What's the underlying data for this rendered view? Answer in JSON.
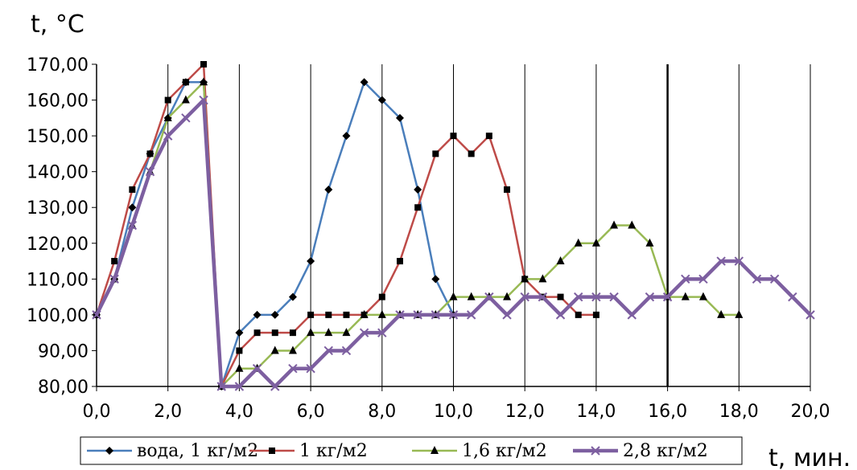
{
  "chart_data": {
    "type": "line",
    "ylabel": "t, °C",
    "xlabel": "t, мин.",
    "xlim": [
      0,
      20
    ],
    "ylim": [
      80,
      170
    ],
    "x_ticks": [
      "0,0",
      "2,0",
      "4,0",
      "6,0",
      "8,0",
      "10,0",
      "12,0",
      "14,0",
      "16,0",
      "18,0",
      "20,0"
    ],
    "y_ticks": [
      "80,00",
      "90,00",
      "100,00",
      "110,00",
      "120,00",
      "130,00",
      "140,00",
      "150,00",
      "160,00",
      "170,00"
    ],
    "grid": "vertical",
    "legend_position": "bottom",
    "series": [
      {
        "name": "вода, 1 кг/м2",
        "color": "#4a7ebb",
        "marker": "diamond",
        "x": [
          0,
          0.5,
          1,
          1.5,
          2,
          2.5,
          3,
          3.5,
          4,
          4.5,
          5,
          5.5,
          6,
          6.5,
          7,
          7.5,
          8,
          8.5,
          9,
          9.5,
          10
        ],
        "y": [
          100,
          110,
          130,
          145,
          155,
          165,
          165,
          80,
          95,
          100,
          100,
          105,
          115,
          135,
          150,
          165,
          160,
          155,
          135,
          110,
          100
        ]
      },
      {
        "name": "1 кг/м2",
        "color": "#be4b48",
        "marker": "square",
        "x": [
          0,
          0.5,
          1,
          1.5,
          2,
          2.5,
          3,
          3.5,
          4,
          4.5,
          5,
          5.5,
          6,
          6.5,
          7,
          7.5,
          8,
          8.5,
          9,
          9.5,
          10,
          10.5,
          11,
          11.5,
          12,
          12.5,
          13,
          13.5,
          14
        ],
        "y": [
          100,
          115,
          135,
          145,
          160,
          165,
          170,
          80,
          90,
          95,
          95,
          95,
          100,
          100,
          100,
          100,
          105,
          115,
          130,
          145,
          150,
          145,
          150,
          135,
          110,
          105,
          105,
          100,
          100
        ]
      },
      {
        "name": "1,6 кг/м2",
        "color": "#98b954",
        "marker": "triangle",
        "x": [
          0,
          0.5,
          1,
          1.5,
          2,
          2.5,
          3,
          3.5,
          4,
          4.5,
          5,
          5.5,
          6,
          6.5,
          7,
          7.5,
          8,
          8.5,
          9,
          9.5,
          10,
          10.5,
          11,
          11.5,
          12,
          12.5,
          13,
          13.5,
          14,
          14.5,
          15,
          15.5,
          16,
          16.5,
          17,
          17.5,
          18
        ],
        "y": [
          100,
          110,
          125,
          140,
          155,
          160,
          165,
          80,
          85,
          85,
          90,
          90,
          95,
          95,
          95,
          100,
          100,
          100,
          100,
          100,
          105,
          105,
          105,
          105,
          110,
          110,
          115,
          120,
          120,
          125,
          125,
          120,
          105,
          105,
          105,
          100,
          100
        ]
      },
      {
        "name": "2,8 кг/м2",
        "color": "#7d5fa0",
        "marker": "x",
        "x": [
          0,
          0.5,
          1,
          1.5,
          2,
          2.5,
          3,
          3.5,
          4,
          4.5,
          5,
          5.5,
          6,
          6.5,
          7,
          7.5,
          8,
          8.5,
          9,
          9.5,
          10,
          10.5,
          11,
          11.5,
          12,
          12.5,
          13,
          13.5,
          14,
          14.5,
          15,
          15.5,
          16,
          16.5,
          17,
          17.5,
          18,
          18.5,
          19,
          19.5,
          20
        ],
        "y": [
          100,
          110,
          125,
          140,
          150,
          155,
          160,
          80,
          80,
          85,
          80,
          85,
          85,
          90,
          90,
          95,
          95,
          100,
          100,
          100,
          100,
          100,
          105,
          100,
          105,
          105,
          100,
          105,
          105,
          105,
          100,
          105,
          105,
          110,
          110,
          115,
          115,
          110,
          110,
          105,
          100
        ]
      }
    ]
  }
}
